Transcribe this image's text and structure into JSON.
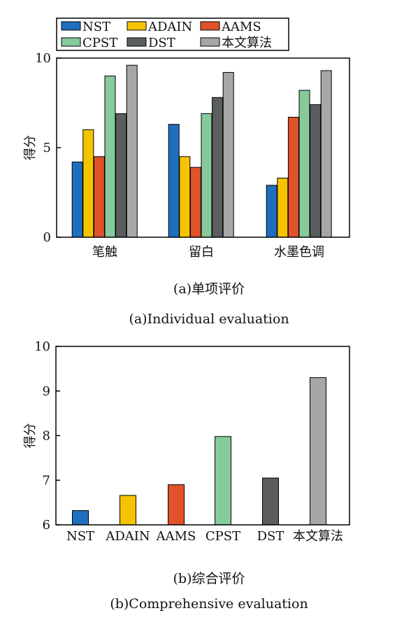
{
  "chart_data": [
    {
      "type": "bar",
      "categories": [
        "笔触",
        "留白",
        "水墨色调"
      ],
      "series": [
        {
          "name": "NST",
          "color": "#1f6fbf",
          "values": [
            4.2,
            6.3,
            2.9
          ]
        },
        {
          "name": "ADAIN",
          "color": "#f5c400",
          "values": [
            6.0,
            4.5,
            3.3
          ]
        },
        {
          "name": "AAMS",
          "color": "#e0522a",
          "values": [
            4.5,
            3.9,
            6.7
          ]
        },
        {
          "name": "CPST",
          "color": "#86c99b",
          "values": [
            9.0,
            6.9,
            8.2
          ]
        },
        {
          "name": "DST",
          "color": "#5a5e5e",
          "values": [
            6.9,
            7.8,
            7.4
          ]
        },
        {
          "name": "本文算法",
          "color": "#a5a8a6",
          "values": [
            9.6,
            9.2,
            9.3
          ]
        }
      ],
      "ylabel": "得分",
      "ylim": [
        0,
        10
      ],
      "yticks": [
        "0",
        "5",
        "10"
      ],
      "legend": "top",
      "caption_zh": "(a)单项评价",
      "caption_en": "(a)Individual evaluation"
    },
    {
      "type": "bar",
      "categories": [
        "NST",
        "ADAIN",
        "AAMS",
        "CPST",
        "DST",
        "本文算法"
      ],
      "values": [
        6.32,
        6.66,
        6.9,
        7.98,
        7.05,
        9.3
      ],
      "colors": [
        "#1f6fbf",
        "#f5c400",
        "#e0522a",
        "#86c99b",
        "#5a5e5e",
        "#a5a8a6"
      ],
      "ylabel": "得分",
      "ylim": [
        6,
        10
      ],
      "yticks": [
        "6",
        "7",
        "8",
        "9",
        "10"
      ],
      "caption_zh": "(b)综合评价",
      "caption_en": "(b)Comprehensive evaluation"
    }
  ]
}
